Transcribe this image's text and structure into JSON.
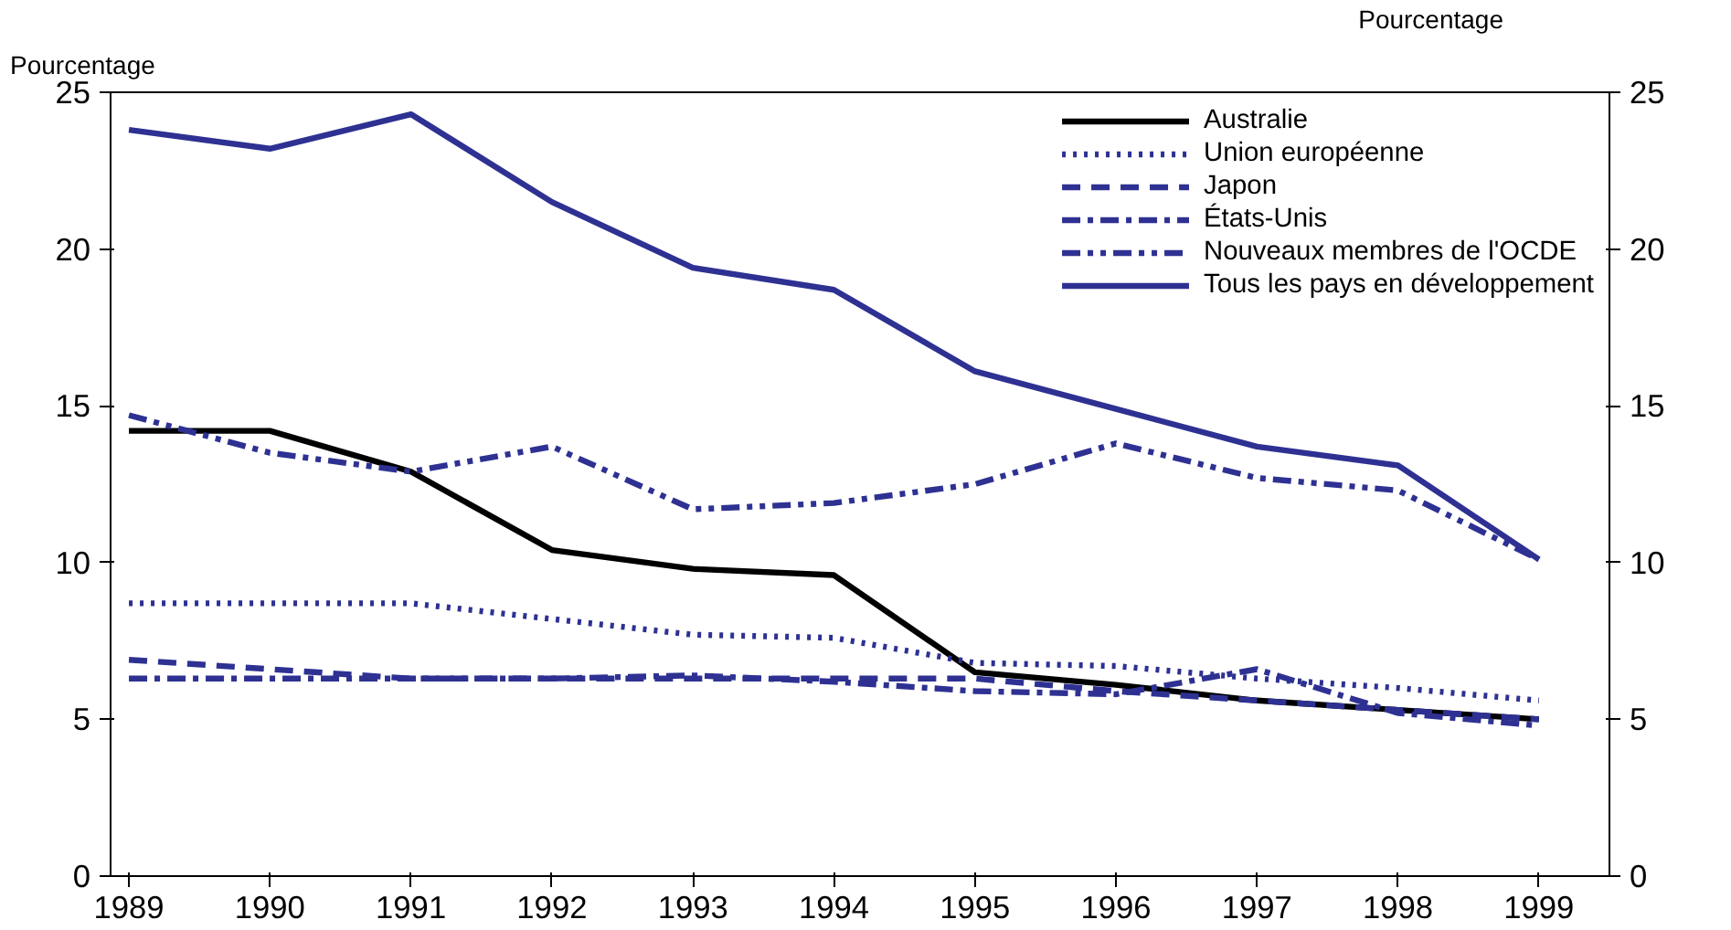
{
  "chart_data": {
    "type": "line",
    "ylabel": "Pourcentage",
    "y2label": "Pourcentage",
    "categories": [
      "1989",
      "1990",
      "1991",
      "1992",
      "1993",
      "1994",
      "1995",
      "1996",
      "1997",
      "1998",
      "1999"
    ],
    "ylim": [
      0,
      25
    ],
    "yticks": [
      0,
      5,
      10,
      15,
      20,
      25
    ],
    "y2lim": [
      0,
      25
    ],
    "y2ticks": [
      0,
      5,
      10,
      15,
      20,
      25
    ],
    "grid": false,
    "legend": "top right",
    "series": [
      {
        "name": "Australie",
        "color": "#000000",
        "line_style": "solid",
        "values": [
          14.2,
          14.2,
          12.9,
          10.4,
          9.8,
          9.6,
          6.5,
          6.1,
          5.6,
          5.3,
          5.0
        ]
      },
      {
        "name": "Union européenne",
        "color": "#2e3192",
        "line_style": "dotted",
        "values": [
          8.7,
          8.7,
          8.7,
          8.2,
          7.7,
          7.6,
          6.8,
          6.7,
          6.3,
          6.0,
          5.6
        ]
      },
      {
        "name": "Japon",
        "color": "#2e3192",
        "line_style": "dashed",
        "values": [
          6.9,
          6.6,
          6.3,
          6.3,
          6.3,
          6.3,
          6.3,
          5.9,
          5.6,
          5.3,
          5.0
        ]
      },
      {
        "name": "États-Unis",
        "color": "#2e3192",
        "line_style": "dashdot",
        "values": [
          6.3,
          6.3,
          6.3,
          6.3,
          6.4,
          6.2,
          5.9,
          5.8,
          6.6,
          5.2,
          4.8
        ]
      },
      {
        "name": "Nouveaux membres de l'OCDE",
        "color": "#2e3192",
        "line_style": "dashdotdot",
        "values": [
          14.7,
          13.5,
          12.9,
          13.7,
          11.7,
          11.9,
          12.5,
          13.8,
          12.7,
          12.3,
          10.1
        ]
      },
      {
        "name": "Tous les pays en développement",
        "color": "#2e3192",
        "line_style": "solid",
        "values": [
          23.8,
          23.2,
          24.3,
          21.5,
          19.4,
          18.7,
          16.1,
          14.9,
          13.7,
          13.1,
          10.1
        ]
      }
    ]
  }
}
